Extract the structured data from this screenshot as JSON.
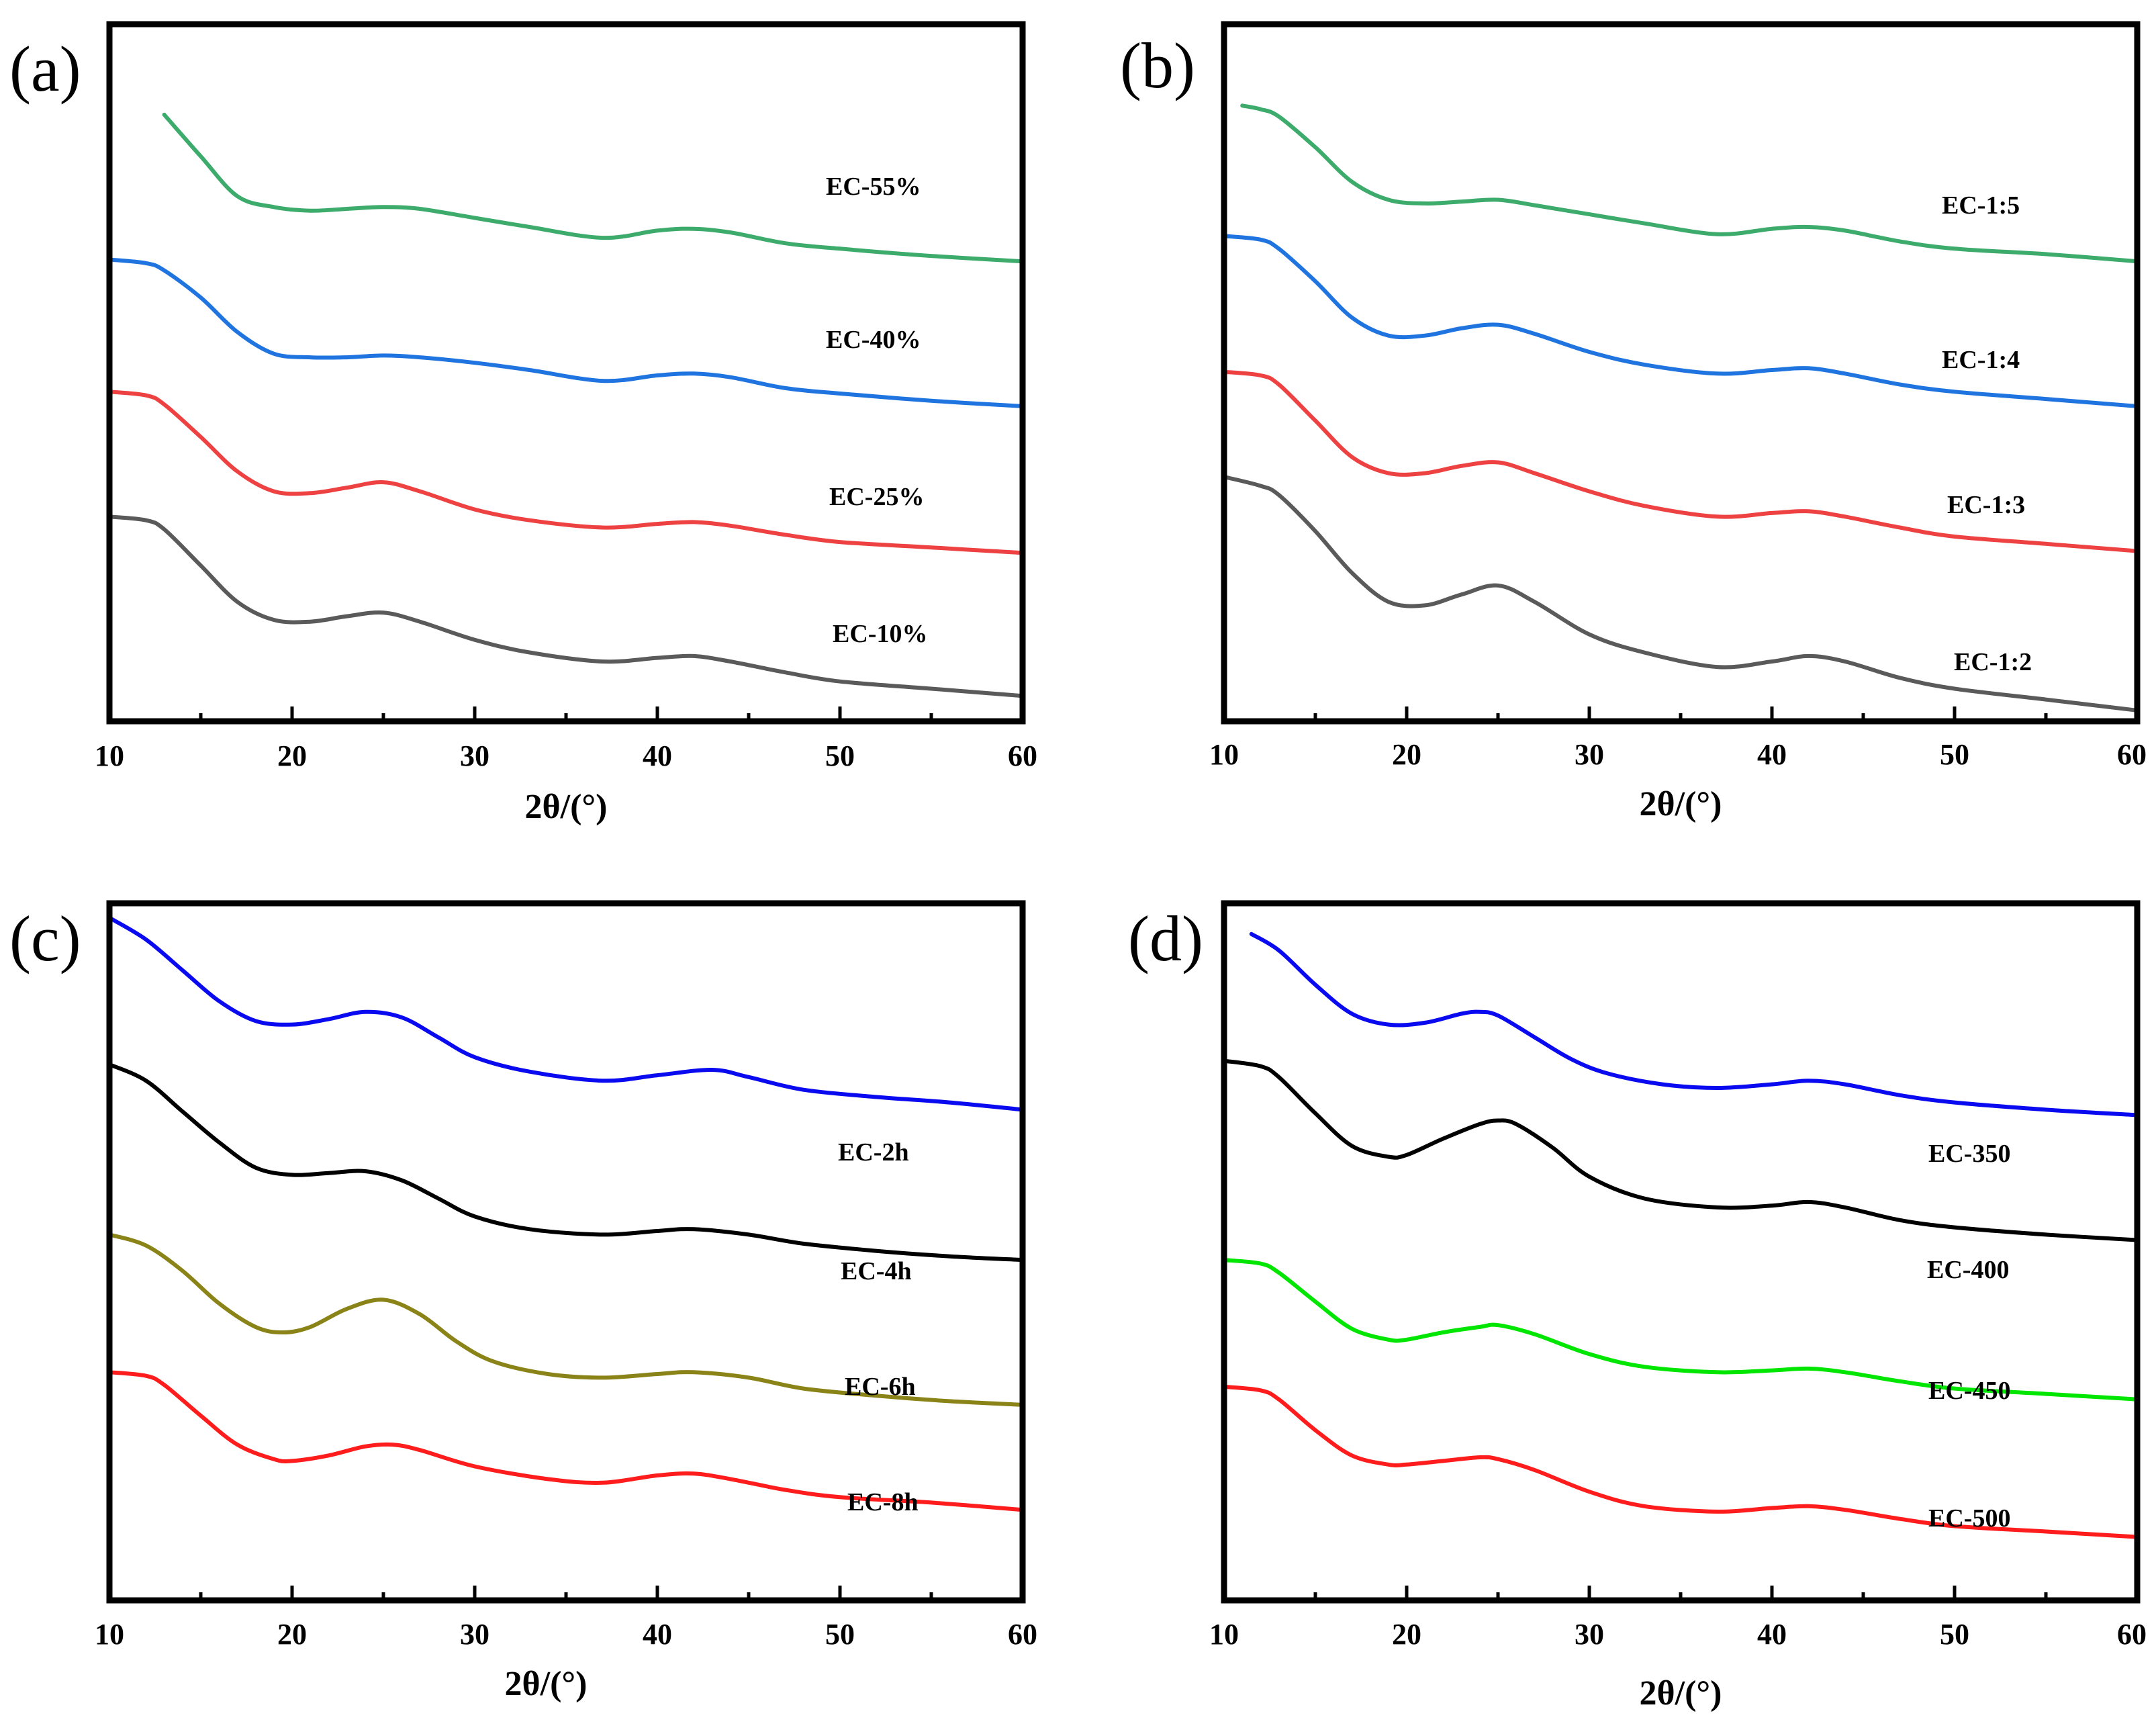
{
  "chart_data": [
    {
      "type": "line",
      "panel": "(a)",
      "xlabel": "2θ/(°)",
      "ylabel": "",
      "xlim": [
        10,
        60
      ],
      "xticks": [
        "10",
        "20",
        "30",
        "40",
        "50",
        "60"
      ],
      "series": [
        {
          "name": "EC-55%",
          "color": "#3cab6b",
          "offset": 2.4,
          "x": [
            13,
            15,
            17,
            19,
            21,
            23,
            25,
            27,
            30,
            33,
            37,
            40,
            42,
            44,
            47,
            50,
            55,
            60
          ],
          "y": [
            0.95,
            0.72,
            0.5,
            0.44,
            0.42,
            0.43,
            0.44,
            0.43,
            0.38,
            0.33,
            0.27,
            0.31,
            0.32,
            0.3,
            0.24,
            0.21,
            0.17,
            0.14
          ]
        },
        {
          "name": "EC-40%",
          "color": "#1f74e0",
          "offset": 1.6,
          "x": [
            10,
            12,
            13,
            15,
            17,
            19,
            21,
            23,
            25,
            27,
            30,
            33,
            37,
            40,
            42,
            44,
            47,
            50,
            55,
            60
          ],
          "y": [
            0.95,
            0.93,
            0.89,
            0.74,
            0.55,
            0.43,
            0.41,
            0.41,
            0.42,
            0.41,
            0.38,
            0.34,
            0.28,
            0.31,
            0.32,
            0.3,
            0.24,
            0.21,
            0.17,
            0.14
          ]
        },
        {
          "name": "EC-25%",
          "color": "#ee4242",
          "offset": 0.8,
          "x": [
            10,
            12,
            13,
            15,
            17,
            19,
            21,
            23,
            25,
            27,
            30,
            33,
            37,
            40,
            42,
            44,
            47,
            50,
            55,
            60
          ],
          "y": [
            1.02,
            1.0,
            0.95,
            0.77,
            0.58,
            0.47,
            0.46,
            0.49,
            0.52,
            0.47,
            0.37,
            0.31,
            0.27,
            0.29,
            0.3,
            0.28,
            0.23,
            0.19,
            0.16,
            0.13
          ]
        },
        {
          "name": "EC-10%",
          "color": "#5a5a5a",
          "offset": 0,
          "x": [
            10,
            12,
            13,
            15,
            17,
            19,
            21,
            23,
            25,
            27,
            30,
            33,
            37,
            40,
            42,
            44,
            47,
            50,
            55,
            60
          ],
          "y": [
            1.13,
            1.11,
            1.06,
            0.86,
            0.66,
            0.56,
            0.55,
            0.58,
            0.6,
            0.55,
            0.45,
            0.38,
            0.33,
            0.35,
            0.36,
            0.33,
            0.27,
            0.22,
            0.18,
            0.14
          ]
        }
      ]
    },
    {
      "type": "line",
      "panel": "(b)",
      "xlabel": "2θ/(°)",
      "ylabel": "",
      "xlim": [
        10,
        60
      ],
      "xticks": [
        "10",
        "20",
        "30",
        "40",
        "50",
        "60"
      ],
      "series": [
        {
          "name": "EC-1:5",
          "color": "#3cab6b",
          "offset": 2.4,
          "x": [
            11,
            12,
            13,
            15,
            17,
            19,
            21,
            23,
            25,
            27,
            30,
            33,
            37,
            40,
            42,
            44,
            47,
            50,
            55,
            60
          ],
          "y": [
            1.0,
            0.98,
            0.94,
            0.77,
            0.58,
            0.48,
            0.46,
            0.47,
            0.48,
            0.45,
            0.4,
            0.35,
            0.29,
            0.32,
            0.33,
            0.31,
            0.25,
            0.21,
            0.18,
            0.14
          ]
        },
        {
          "name": "EC-1:4",
          "color": "#1f74e0",
          "offset": 1.6,
          "x": [
            10,
            12,
            13,
            15,
            17,
            19,
            21,
            23,
            25,
            27,
            30,
            33,
            37,
            40,
            42,
            44,
            47,
            50,
            55,
            60
          ],
          "y": [
            1.08,
            1.06,
            1.01,
            0.83,
            0.63,
            0.53,
            0.53,
            0.57,
            0.59,
            0.54,
            0.44,
            0.37,
            0.32,
            0.34,
            0.35,
            0.32,
            0.26,
            0.22,
            0.18,
            0.14
          ]
        },
        {
          "name": "EC-1:3",
          "color": "#ee4242",
          "offset": 0.8,
          "x": [
            10,
            12,
            13,
            15,
            17,
            19,
            21,
            23,
            25,
            27,
            30,
            33,
            37,
            40,
            42,
            44,
            47,
            50,
            55,
            60
          ],
          "y": [
            1.13,
            1.11,
            1.06,
            0.86,
            0.66,
            0.57,
            0.57,
            0.61,
            0.63,
            0.57,
            0.47,
            0.39,
            0.33,
            0.35,
            0.36,
            0.33,
            0.27,
            0.22,
            0.18,
            0.14
          ]
        },
        {
          "name": "EC-1:2",
          "color": "#5a5a5a",
          "offset": 0,
          "x": [
            10,
            12,
            13,
            15,
            17,
            19,
            21,
            23,
            25,
            27,
            30,
            33,
            37,
            40,
            42,
            44,
            47,
            50,
            55,
            60
          ],
          "y": [
            1.35,
            1.3,
            1.25,
            1.05,
            0.82,
            0.66,
            0.64,
            0.7,
            0.75,
            0.66,
            0.48,
            0.38,
            0.3,
            0.33,
            0.36,
            0.33,
            0.24,
            0.18,
            0.12,
            0.06
          ]
        }
      ]
    },
    {
      "type": "line",
      "panel": "(c)",
      "xlabel": "2θ/(°)",
      "ylabel": "",
      "xlim": [
        10,
        60
      ],
      "xticks": [
        "10",
        "20",
        "30",
        "40",
        "50",
        "60"
      ],
      "series": [
        {
          "name": "EC-2h",
          "color": "#0a0af0",
          "offset": 2.4,
          "x": [
            10,
            12,
            14,
            16,
            18,
            20,
            22,
            24,
            26,
            28,
            30,
            33,
            37,
            40,
            43,
            45,
            48,
            52,
            56,
            60
          ],
          "y": [
            1.37,
            1.25,
            1.08,
            0.91,
            0.8,
            0.78,
            0.81,
            0.85,
            0.82,
            0.71,
            0.6,
            0.52,
            0.47,
            0.5,
            0.53,
            0.49,
            0.42,
            0.38,
            0.35,
            0.31
          ]
        },
        {
          "name": "EC-4h",
          "color": "#000000",
          "offset": 1.6,
          "x": [
            10,
            12,
            14,
            16,
            18,
            20,
            22,
            24,
            26,
            28,
            30,
            33,
            37,
            40,
            42,
            45,
            48,
            52,
            56,
            60
          ],
          "y": [
            1.36,
            1.27,
            1.1,
            0.93,
            0.79,
            0.75,
            0.76,
            0.77,
            0.72,
            0.62,
            0.52,
            0.45,
            0.42,
            0.44,
            0.45,
            0.42,
            0.37,
            0.33,
            0.3,
            0.28
          ]
        },
        {
          "name": "EC-6h",
          "color": "#8a8317",
          "offset": 0.8,
          "x": [
            10,
            12,
            14,
            16,
            18,
            19.5,
            21,
            23,
            25,
            27,
            29,
            31,
            34,
            37,
            40,
            42,
            45,
            48,
            52,
            56,
            60
          ],
          "y": [
            1.22,
            1.16,
            1.02,
            0.84,
            0.71,
            0.68,
            0.71,
            0.81,
            0.86,
            0.78,
            0.63,
            0.52,
            0.45,
            0.43,
            0.45,
            0.46,
            0.43,
            0.37,
            0.33,
            0.3,
            0.28
          ]
        },
        {
          "name": "EC-8h",
          "color": "#ff1c1c",
          "offset": 0,
          "x": [
            10,
            12,
            13,
            15,
            17,
            19,
            20,
            22,
            24,
            25.5,
            27,
            30,
            34,
            37,
            40,
            42,
            44,
            47,
            50,
            55,
            60
          ],
          "y": [
            1.26,
            1.24,
            1.19,
            1.02,
            0.86,
            0.78,
            0.77,
            0.8,
            0.85,
            0.86,
            0.83,
            0.74,
            0.67,
            0.65,
            0.69,
            0.7,
            0.67,
            0.61,
            0.57,
            0.54,
            0.5
          ]
        }
      ]
    },
    {
      "type": "line",
      "panel": "(d)",
      "xlabel": "2θ/(°)",
      "ylabel": "",
      "xlim": [
        10,
        60
      ],
      "xticks": [
        "10",
        "20",
        "30",
        "40",
        "50",
        "60"
      ],
      "series": [
        {
          "name": "EC-350",
          "color": "#0a0af0",
          "offset": 2.4,
          "x": [
            11.5,
            13,
            15,
            17,
            19,
            21,
            23,
            24,
            25,
            27,
            29,
            31,
            34,
            37,
            40,
            42,
            44,
            47,
            50,
            55,
            60
          ],
          "y": [
            1.28,
            1.19,
            1.0,
            0.84,
            0.78,
            0.79,
            0.84,
            0.85,
            0.83,
            0.71,
            0.59,
            0.51,
            0.45,
            0.43,
            0.45,
            0.47,
            0.45,
            0.39,
            0.35,
            0.31,
            0.28
          ]
        },
        {
          "name": "EC-400",
          "color": "#000000",
          "offset": 1.6,
          "x": [
            10,
            12,
            13,
            15,
            17,
            19,
            20,
            22,
            24,
            25,
            26,
            28,
            30,
            33,
            37,
            40,
            42,
            44,
            47,
            50,
            55,
            60
          ],
          "y": [
            1.38,
            1.35,
            1.29,
            1.09,
            0.91,
            0.85,
            0.86,
            0.95,
            1.03,
            1.05,
            1.03,
            0.9,
            0.74,
            0.62,
            0.57,
            0.58,
            0.6,
            0.57,
            0.5,
            0.46,
            0.42,
            0.39
          ]
        },
        {
          "name": "EC-450",
          "color": "#00e600",
          "offset": 0.8,
          "x": [
            10,
            12,
            13,
            15,
            17,
            19,
            20,
            22,
            24,
            25,
            27,
            30,
            33,
            37,
            40,
            42,
            44,
            47,
            50,
            55,
            60
          ],
          "y": [
            1.08,
            1.06,
            1.01,
            0.85,
            0.7,
            0.64,
            0.64,
            0.68,
            0.71,
            0.72,
            0.67,
            0.56,
            0.49,
            0.46,
            0.47,
            0.48,
            0.46,
            0.41,
            0.37,
            0.34,
            0.31
          ]
        },
        {
          "name": "EC-500",
          "color": "#ff1c1c",
          "offset": 0,
          "x": [
            10,
            12,
            13,
            15,
            17,
            19,
            20,
            22,
            24,
            25,
            27,
            30,
            33,
            37,
            40,
            42,
            44,
            47,
            50,
            55,
            60
          ],
          "y": [
            1.18,
            1.16,
            1.11,
            0.94,
            0.8,
            0.75,
            0.75,
            0.77,
            0.79,
            0.78,
            0.72,
            0.6,
            0.52,
            0.49,
            0.51,
            0.52,
            0.5,
            0.45,
            0.41,
            0.38,
            0.35
          ]
        }
      ]
    }
  ]
}
